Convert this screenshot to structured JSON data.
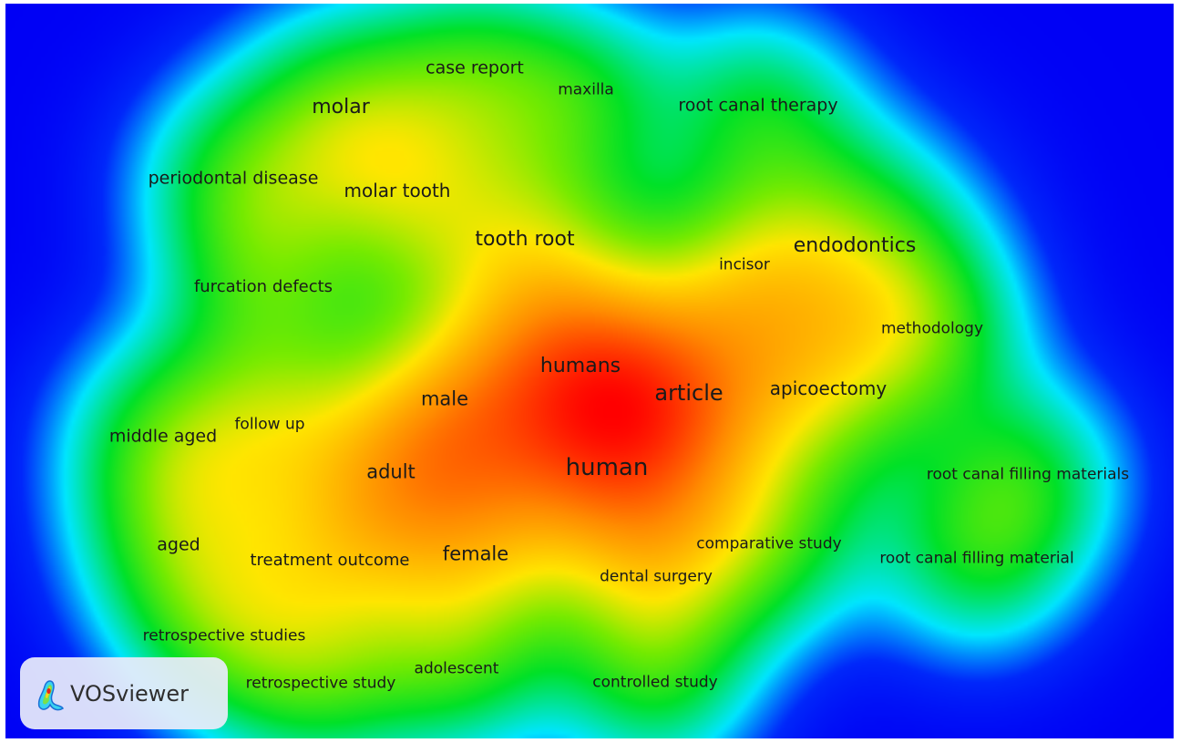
{
  "app": {
    "logo_text": "VOSviewer",
    "logo_icon": "vosviewer-logo-icon"
  },
  "map": {
    "type": "density-visualization",
    "colors": {
      "background": "#0000f5",
      "low": "#00e5ff",
      "mid": "#00e000",
      "high": "#ffe600",
      "peak": "#ff0000"
    },
    "terms": [
      {
        "label": "case report",
        "weight": 0.45
      },
      {
        "label": "maxilla",
        "weight": 0.35
      },
      {
        "label": "root canal therapy",
        "weight": 0.45
      },
      {
        "label": "molar",
        "weight": 0.6
      },
      {
        "label": "periodontal disease",
        "weight": 0.5
      },
      {
        "label": "molar tooth",
        "weight": 0.55
      },
      {
        "label": "tooth root",
        "weight": 0.8
      },
      {
        "label": "endodontics",
        "weight": 0.8
      },
      {
        "label": "incisor",
        "weight": 0.4
      },
      {
        "label": "furcation defects",
        "weight": 0.45
      },
      {
        "label": "methodology",
        "weight": 0.4
      },
      {
        "label": "humans",
        "weight": 0.9
      },
      {
        "label": "article",
        "weight": 1.0
      },
      {
        "label": "apicoectomy",
        "weight": 0.6
      },
      {
        "label": "male",
        "weight": 0.7
      },
      {
        "label": "middle aged",
        "weight": 0.55
      },
      {
        "label": "follow up",
        "weight": 0.45
      },
      {
        "label": "adult",
        "weight": 0.75
      },
      {
        "label": "human",
        "weight": 1.0
      },
      {
        "label": "root canal filling materials",
        "weight": 0.45
      },
      {
        "label": "aged",
        "weight": 0.55
      },
      {
        "label": "comparative study",
        "weight": 0.45
      },
      {
        "label": "treatment outcome",
        "weight": 0.45
      },
      {
        "label": "female",
        "weight": 0.65
      },
      {
        "label": "root canal filling material",
        "weight": 0.45
      },
      {
        "label": "dental surgery",
        "weight": 0.45
      },
      {
        "label": "retrospective studies",
        "weight": 0.45
      },
      {
        "label": "adolescent",
        "weight": 0.4
      },
      {
        "label": "retrospective study",
        "weight": 0.45
      },
      {
        "label": "controlled study",
        "weight": 0.45
      }
    ]
  }
}
